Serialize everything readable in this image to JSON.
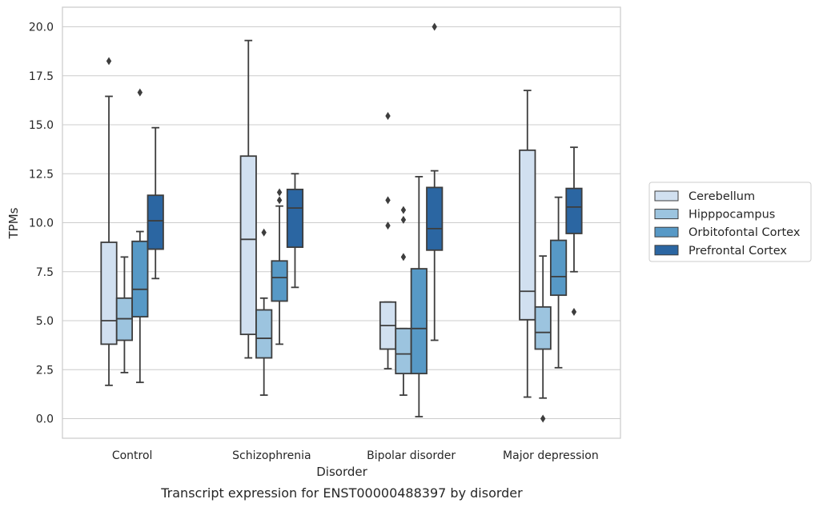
{
  "caption": "Transcript expression for ENST00000488397 by disorder",
  "chart_data": {
    "type": "box",
    "title": "",
    "xlabel": "Disorder",
    "ylabel": "TPMs",
    "ylim": [
      -1.0,
      21.0
    ],
    "yticks": [
      "0.0",
      "2.5",
      "5.0",
      "7.5",
      "10.0",
      "12.5",
      "15.0",
      "17.5",
      "20.0"
    ],
    "grid": "horizontal",
    "legend_position": "right",
    "categories": [
      "Control",
      "Schizophrenia",
      "Bipolar disorder",
      "Major depression"
    ],
    "series": [
      {
        "name": "Cerebellum",
        "color": "#d1e0f0",
        "boxes": [
          {
            "whisker_low": 1.7,
            "q1": 3.8,
            "median": 5.0,
            "q3": 9.0,
            "whisker_high": 16.45,
            "outliers": [
              18.25
            ]
          },
          {
            "whisker_low": 3.1,
            "q1": 4.3,
            "median": 9.15,
            "q3": 13.4,
            "whisker_high": 19.3,
            "outliers": []
          },
          {
            "whisker_low": 2.55,
            "q1": 3.55,
            "median": 4.75,
            "q3": 5.95,
            "whisker_high": 5.95,
            "outliers": [
              9.85,
              11.15,
              15.45
            ]
          },
          {
            "whisker_low": 1.1,
            "q1": 5.05,
            "median": 6.5,
            "q3": 13.7,
            "whisker_high": 16.75,
            "outliers": []
          }
        ]
      },
      {
        "name": "Hipppocampus",
        "color": "#9cc4df",
        "boxes": [
          {
            "whisker_low": 2.35,
            "q1": 4.0,
            "median": 5.1,
            "q3": 6.15,
            "whisker_high": 8.25,
            "outliers": []
          },
          {
            "whisker_low": 1.2,
            "q1": 3.1,
            "median": 4.1,
            "q3": 5.55,
            "whisker_high": 6.15,
            "outliers": [
              9.5
            ]
          },
          {
            "whisker_low": 1.2,
            "q1": 2.3,
            "median": 3.3,
            "q3": 4.6,
            "whisker_high": 4.6,
            "outliers": [
              8.25,
              10.15,
              10.65
            ]
          },
          {
            "whisker_low": 1.05,
            "q1": 3.55,
            "median": 4.4,
            "q3": 5.7,
            "whisker_high": 8.3,
            "outliers": [
              0.0
            ]
          }
        ]
      },
      {
        "name": "Orbitofontal Cortex",
        "color": "#5799c6",
        "boxes": [
          {
            "whisker_low": 1.85,
            "q1": 5.2,
            "median": 6.6,
            "q3": 9.05,
            "whisker_high": 9.55,
            "outliers": [
              16.65
            ]
          },
          {
            "whisker_low": 3.8,
            "q1": 6.0,
            "median": 7.2,
            "q3": 8.05,
            "whisker_high": 10.85,
            "outliers": [
              11.15,
              11.55
            ]
          },
          {
            "whisker_low": 0.1,
            "q1": 2.3,
            "median": 4.6,
            "q3": 7.65,
            "whisker_high": 12.35,
            "outliers": []
          },
          {
            "whisker_low": 2.6,
            "q1": 6.3,
            "median": 7.25,
            "q3": 9.1,
            "whisker_high": 11.3,
            "outliers": []
          }
        ]
      },
      {
        "name": "Prefrontal Cortex",
        "color": "#2b66a2",
        "boxes": [
          {
            "whisker_low": 7.15,
            "q1": 8.65,
            "median": 10.1,
            "q3": 11.4,
            "whisker_high": 14.85,
            "outliers": []
          },
          {
            "whisker_low": 6.7,
            "q1": 8.75,
            "median": 10.75,
            "q3": 11.7,
            "whisker_high": 12.5,
            "outliers": []
          },
          {
            "whisker_low": 4.0,
            "q1": 8.6,
            "median": 9.7,
            "q3": 11.8,
            "whisker_high": 12.65,
            "outliers": [
              20.0
            ]
          },
          {
            "whisker_low": 7.5,
            "q1": 9.45,
            "median": 10.8,
            "q3": 11.75,
            "whisker_high": 13.85,
            "outliers": [
              5.45
            ]
          }
        ]
      }
    ]
  }
}
